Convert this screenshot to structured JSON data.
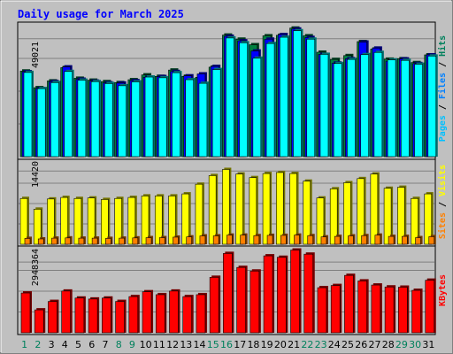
{
  "chart_data": {
    "type": "bar",
    "title": "Daily usage for March 2025",
    "categories": [
      "1",
      "2",
      "3",
      "4",
      "5",
      "6",
      "7",
      "8",
      "9",
      "10",
      "11",
      "12",
      "13",
      "14",
      "15",
      "16",
      "17",
      "18",
      "19",
      "20",
      "21",
      "22",
      "23",
      "24",
      "25",
      "26",
      "27",
      "28",
      "29",
      "30",
      "31"
    ],
    "weekend_days": [
      "1",
      "2",
      "8",
      "9",
      "15",
      "16",
      "22",
      "23",
      "29",
      "30"
    ],
    "panels": [
      {
        "id": "hits-files-pages",
        "ylim": [
          0,
          54300
        ],
        "grid": true,
        "tick_label": "49021",
        "axis_labels": [
          {
            "text": "Pages",
            "color": "#00c0ff"
          },
          {
            "text": "Files",
            "color": "#0080ff"
          },
          {
            "text": "Hits",
            "color": "#00805c"
          }
        ],
        "series": [
          {
            "name": "Hits",
            "color": "#008040",
            "values": [
              35500,
              28600,
              31400,
              36900,
              32500,
              31700,
              31100,
              30700,
              31900,
              33900,
              33300,
              35900,
              33300,
              32900,
              37100,
              50400,
              48700,
              46400,
              50100,
              50300,
              53300,
              50100,
              43300,
              40300,
              41900,
              47700,
              44600,
              40400,
              40600,
              39000,
              42200
            ]
          },
          {
            "name": "Files",
            "color": "#0000ff",
            "values": [
              35200,
              28200,
              31100,
              37200,
              32100,
              31300,
              30600,
              30500,
              31500,
              32900,
              33200,
              35300,
              33500,
              34300,
              37400,
              49900,
              48000,
              43800,
              48700,
              50600,
              52900,
              49400,
              42400,
              38800,
              40600,
              47500,
              45000,
              39600,
              40500,
              38600,
              42200
            ]
          },
          {
            "name": "Pages",
            "color": "#00ffff",
            "values": [
              34900,
              28200,
              30700,
              35300,
              31700,
              31100,
              30300,
              29400,
              31000,
              33000,
              32700,
              34800,
              31900,
              30400,
              36100,
              49200,
              47200,
              40800,
              46900,
              49500,
              52200,
              48700,
              42400,
              38600,
              40300,
              42300,
              43200,
              40100,
              39900,
              38300,
              41700
            ]
          }
        ]
      },
      {
        "id": "visits-sites",
        "ylim": [
          0,
          16000
        ],
        "grid": true,
        "tick_label": "14420",
        "axis_labels": [
          {
            "text": "Sites",
            "color": "#ff8000"
          },
          {
            "text": "Visits",
            "color": "#ffff00"
          }
        ],
        "series": [
          {
            "name": "Visits",
            "color": "#ffff00",
            "values": [
              9000,
              6900,
              8900,
              9200,
              9000,
              9100,
              8800,
              9000,
              9200,
              9500,
              9500,
              9500,
              9900,
              11800,
              13500,
              14700,
              13800,
              13100,
              13900,
              14100,
              13900,
              12400,
              9100,
              10900,
              12100,
              12900,
              13800,
              11000,
              11200,
              9000,
              9900
            ]
          },
          {
            "name": "Sites",
            "color": "#ff8000",
            "values": [
              1150,
              1050,
              1200,
              1250,
              1200,
              1200,
              1150,
              1200,
              1250,
              1300,
              1300,
              1400,
              1450,
              1650,
              1650,
              1800,
              1800,
              1700,
              1750,
              1750,
              1800,
              1700,
              1450,
              1550,
              1650,
              1700,
              1800,
              1550,
              1550,
              1300,
              1500
            ]
          }
        ]
      },
      {
        "id": "kbytes",
        "ylim": [
          0,
          3450000
        ],
        "grid": true,
        "tick_label": "2948364",
        "axis_labels": [
          {
            "text": "KBytes",
            "color": "#ff0000"
          }
        ],
        "series": [
          {
            "name": "KBytes",
            "color": "#ff0000",
            "values": [
              1650000,
              950000,
              1300000,
              1730000,
              1440000,
              1400000,
              1440000,
              1300000,
              1500000,
              1700000,
              1580000,
              1730000,
              1500000,
              1580000,
              2300000,
              3290000,
              2710000,
              2560000,
              3190000,
              3130000,
              3430000,
              3260000,
              1870000,
              1960000,
              2380000,
              2150000,
              1980000,
              1900000,
              1890000,
              1760000,
              2180000
            ]
          }
        ]
      }
    ]
  }
}
